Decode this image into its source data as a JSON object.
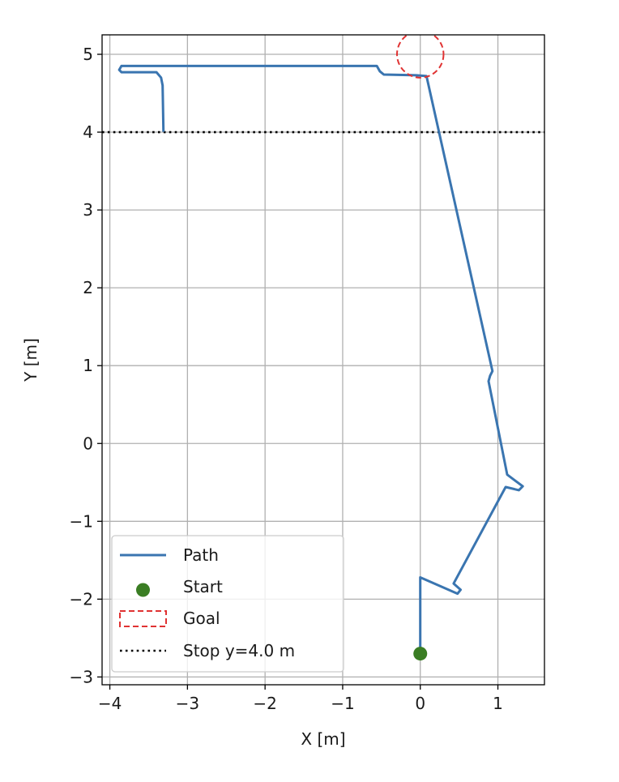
{
  "chart_data": {
    "type": "line",
    "title": "",
    "xlabel": "X [m]",
    "ylabel": "Y [m]",
    "xlim": [
      -4.1,
      1.6
    ],
    "ylim": [
      -3.1,
      5.25
    ],
    "xticks": [
      -4,
      -3,
      -2,
      -1,
      0,
      1
    ],
    "yticks": [
      -3,
      -2,
      -1,
      0,
      1,
      2,
      3,
      4,
      5
    ],
    "xtick_labels": [
      "−4",
      "−3",
      "−2",
      "−1",
      "0",
      "1"
    ],
    "ytick_labels": [
      "−3",
      "−2",
      "−1",
      "0",
      "1",
      "2",
      "3",
      "4",
      "5"
    ],
    "grid": true,
    "aspect": "equal",
    "legend_position": "lower-left",
    "series": [
      {
        "name": "Path",
        "kind": "line",
        "color": "#3a75b0",
        "points": [
          [
            0.0,
            -2.7
          ],
          [
            0.0,
            -2.45
          ],
          [
            0.0,
            -1.72
          ],
          [
            0.48,
            -1.93
          ],
          [
            0.52,
            -1.88
          ],
          [
            0.43,
            -1.8
          ],
          [
            1.1,
            -0.56
          ],
          [
            1.27,
            -0.6
          ],
          [
            1.32,
            -0.55
          ],
          [
            1.12,
            -0.4
          ],
          [
            0.88,
            0.8
          ],
          [
            0.9,
            0.87
          ],
          [
            0.93,
            0.93
          ],
          [
            0.08,
            4.72
          ],
          [
            -0.05,
            4.73
          ],
          [
            -0.47,
            4.74
          ],
          [
            -0.52,
            4.78
          ],
          [
            -0.56,
            4.85
          ],
          [
            -3.85,
            4.85
          ],
          [
            -3.88,
            4.8
          ],
          [
            -3.85,
            4.77
          ],
          [
            -3.4,
            4.77
          ],
          [
            -3.34,
            4.7
          ],
          [
            -3.32,
            4.6
          ],
          [
            -3.31,
            4.02
          ]
        ]
      },
      {
        "name": "Start",
        "kind": "marker",
        "color": "#3a7d23",
        "points": [
          [
            0.0,
            -2.7
          ]
        ]
      },
      {
        "name": "Goal",
        "kind": "circle",
        "color": "#e03232",
        "center": [
          0.0,
          5.0
        ],
        "radius": 0.3
      },
      {
        "name": "Stop y=4.0 m",
        "kind": "hline",
        "color": "#000000",
        "y": 4.0
      }
    ]
  }
}
